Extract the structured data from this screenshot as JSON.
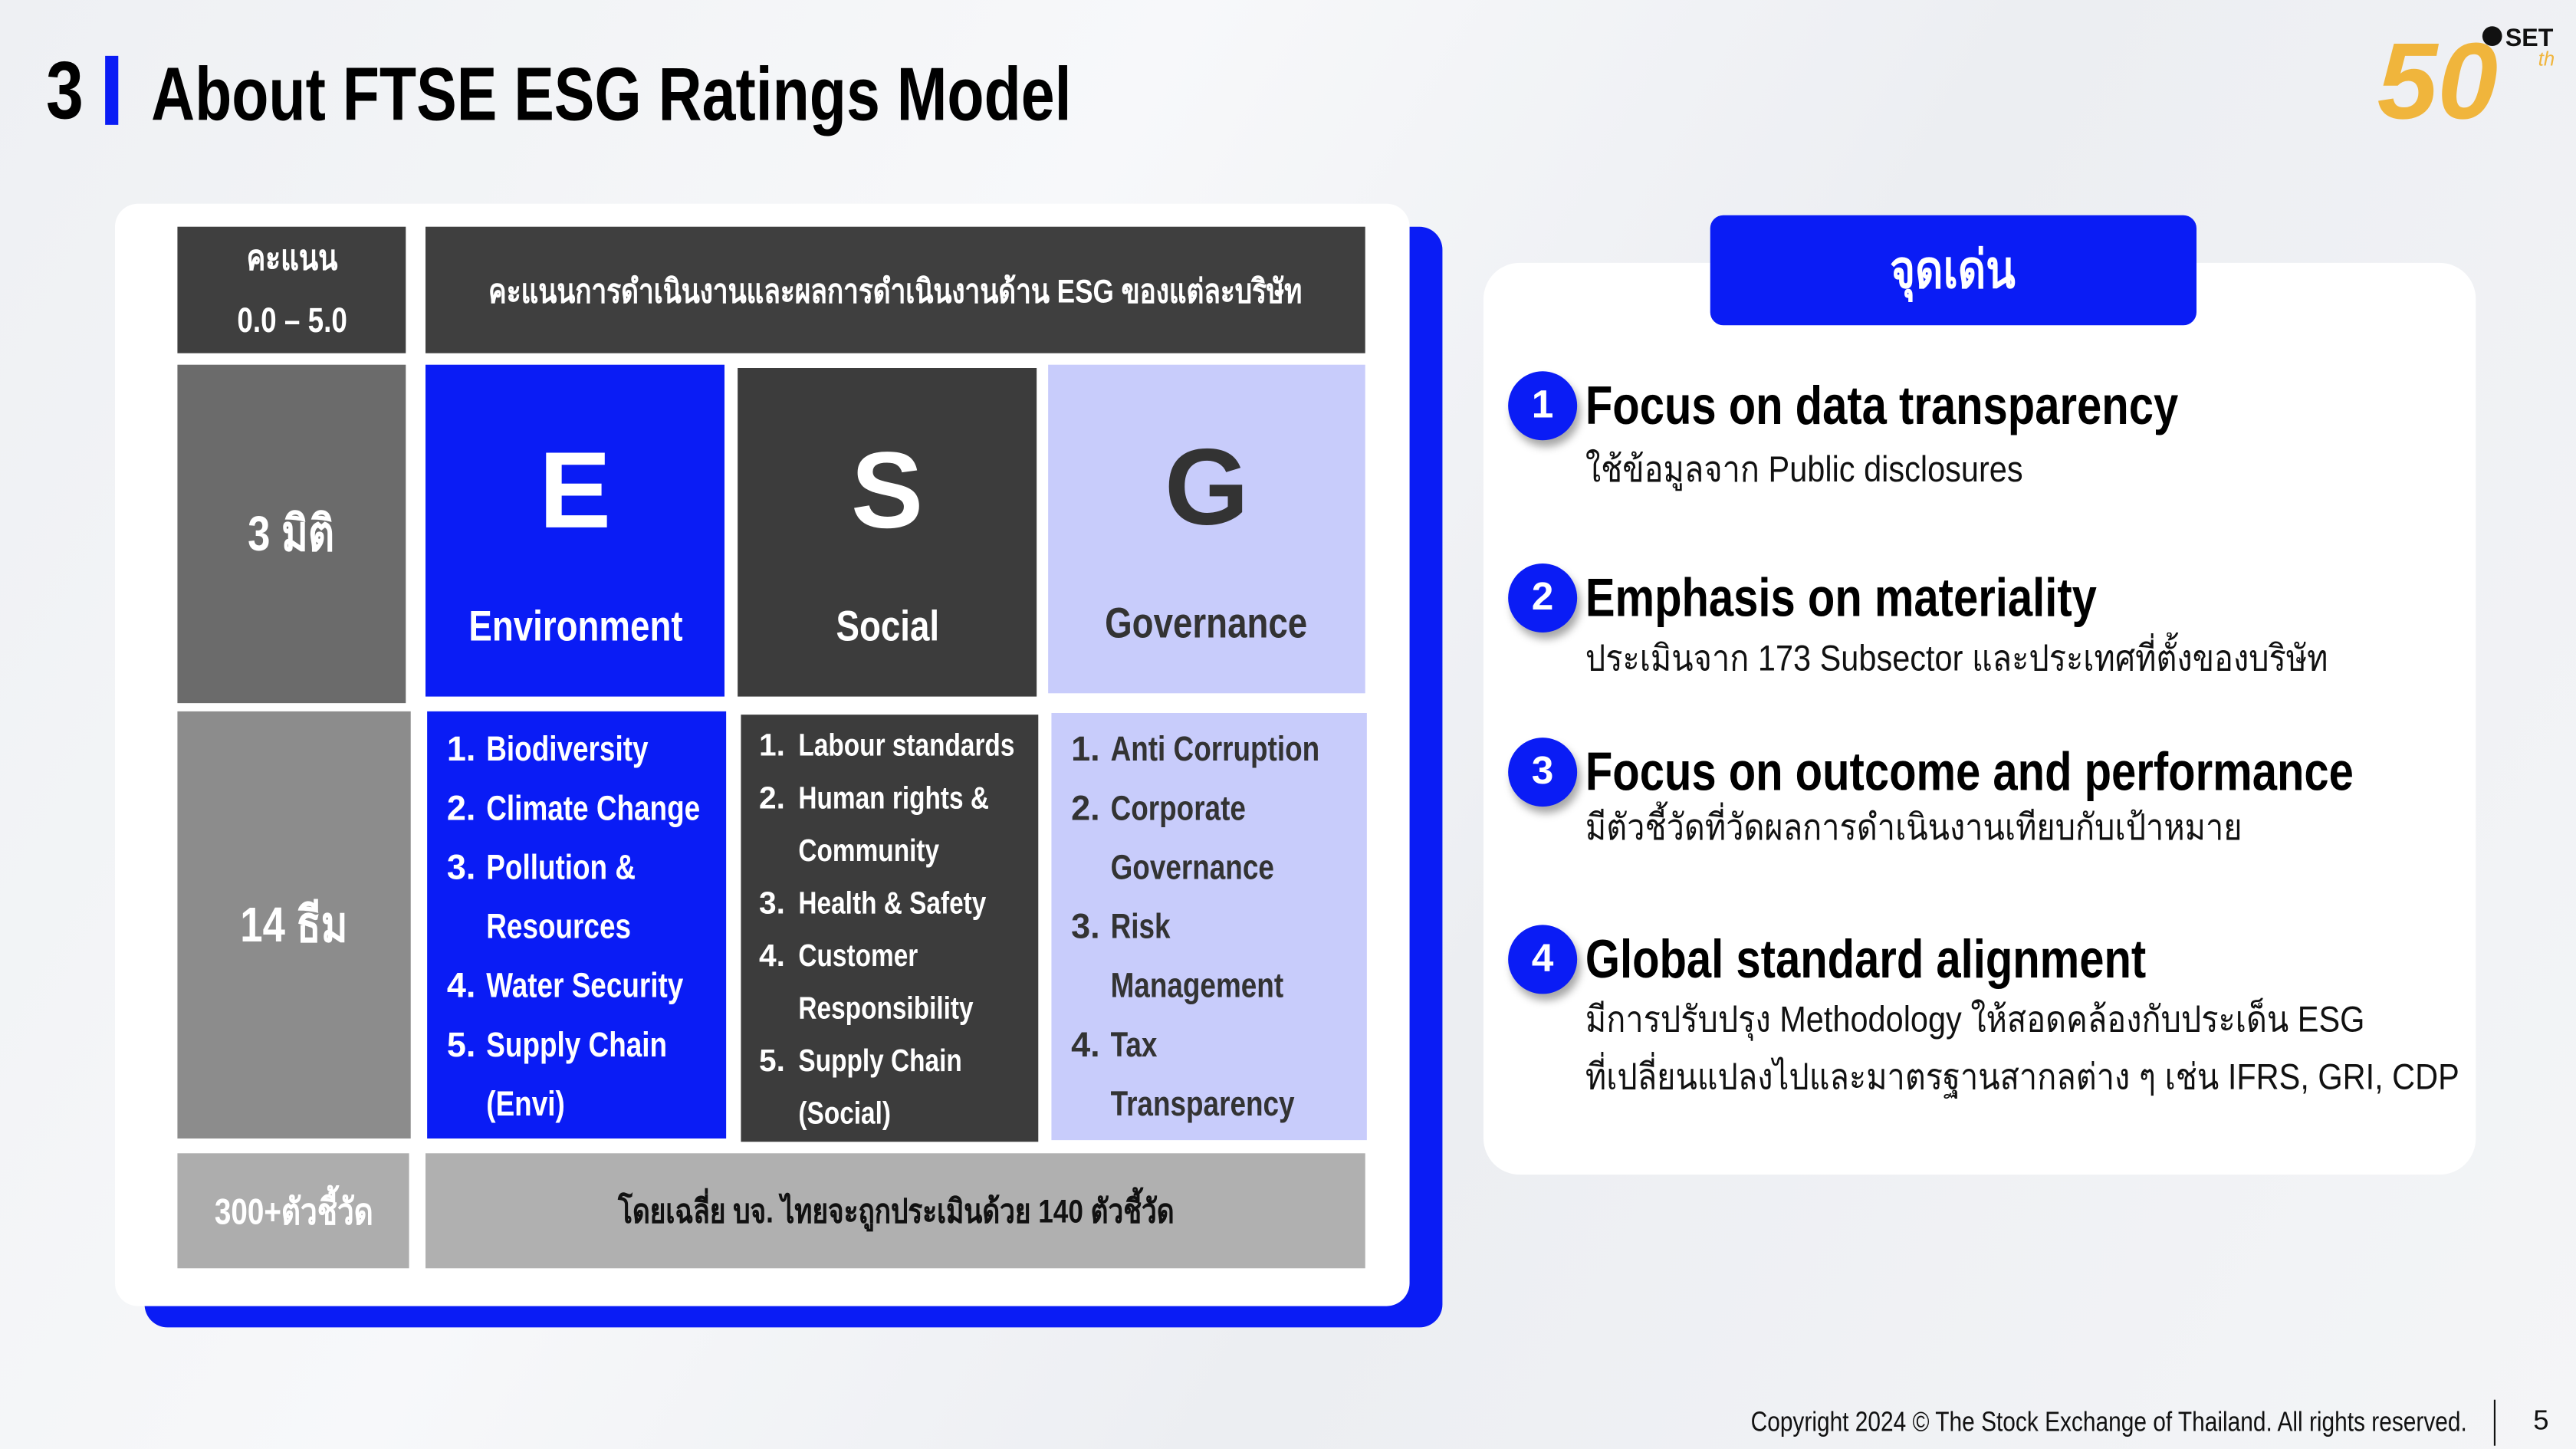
{
  "header": {
    "section_number": "3",
    "title": "About FTSE ESG Ratings Model",
    "logo_text": "SET 50th"
  },
  "table": {
    "score_label": "คะแนน",
    "score_range": "0.0 – 5.0",
    "score_description": "คะแนนการดำเนินงานและผลการดำเนินงานด้าน ESG ของแต่ละบริษัท",
    "dimensions_label": "3 มิติ",
    "themes_label": "14 ธีม",
    "indicators_label": "300+ตัวชี้วัด",
    "indicators_note": "โดยเฉลี่ย บจ. ไทยจะถูกประเมินด้วย 140 ตัวชี้วัด",
    "pillars": [
      {
        "letter": "E",
        "name": "Environment",
        "color": "#0a1cf5",
        "items": [
          [
            "1.",
            "Biodiversity"
          ],
          [
            "2.",
            "Climate Change"
          ],
          [
            "3.",
            "Pollution &"
          ],
          [
            "",
            "Resources"
          ],
          [
            "4.",
            "Water Security"
          ],
          [
            "5.",
            "Supply Chain"
          ],
          [
            "",
            "(Envi)"
          ]
        ]
      },
      {
        "letter": "S",
        "name": "Social",
        "color": "#3c3c3c",
        "items": [
          [
            "1.",
            "Labour standards"
          ],
          [
            "2.",
            "Human rights &"
          ],
          [
            "",
            "Community"
          ],
          [
            "3.",
            "Health & Safety"
          ],
          [
            "4.",
            "Customer"
          ],
          [
            "",
            "Responsibility"
          ],
          [
            "5.",
            "Supply Chain"
          ],
          [
            "",
            "(Social)"
          ]
        ]
      },
      {
        "letter": "G",
        "name": "Governance",
        "color": "#c8ccfb",
        "items": [
          [
            "1.",
            "Anti Corruption"
          ],
          [
            "2.",
            "Corporate"
          ],
          [
            "",
            "Governance"
          ],
          [
            "3.",
            "Risk"
          ],
          [
            "",
            "Management"
          ],
          [
            "4.",
            "Tax"
          ],
          [
            "",
            "Transparency"
          ]
        ]
      }
    ]
  },
  "highlights": {
    "title": "จุดเด่น",
    "items": [
      {
        "num": "1",
        "title": "Focus on data transparency",
        "desc": [
          "ใช้ข้อมูลจาก Public disclosures"
        ]
      },
      {
        "num": "2",
        "title": "Emphasis on materiality",
        "desc": [
          "ประเมินจาก 173 Subsector และประเทศที่ตั้งของบริษัท"
        ]
      },
      {
        "num": "3",
        "title": "Focus on outcome and performance",
        "desc": [
          "มีตัวชี้วัดที่วัดผลการดำเนินงานเทียบกับเป้าหมาย"
        ]
      },
      {
        "num": "4",
        "title": "Global standard alignment",
        "desc": [
          "มีการปรับปรุง Methodology ให้สอดคล้องกับประเด็น ESG",
          "ที่เปลี่ยนแปลงไปและมาตรฐานสากลต่าง ๆ เช่น IFRS, GRI, CDP"
        ]
      }
    ]
  },
  "footer": {
    "copyright": "Copyright 2024 © The Stock Exchange of Thailand. All rights reserved.",
    "page": "5"
  },
  "colors": {
    "accent": "#0a1cf5",
    "dark": "#3c3c3c",
    "lavender": "#c8ccfb"
  }
}
